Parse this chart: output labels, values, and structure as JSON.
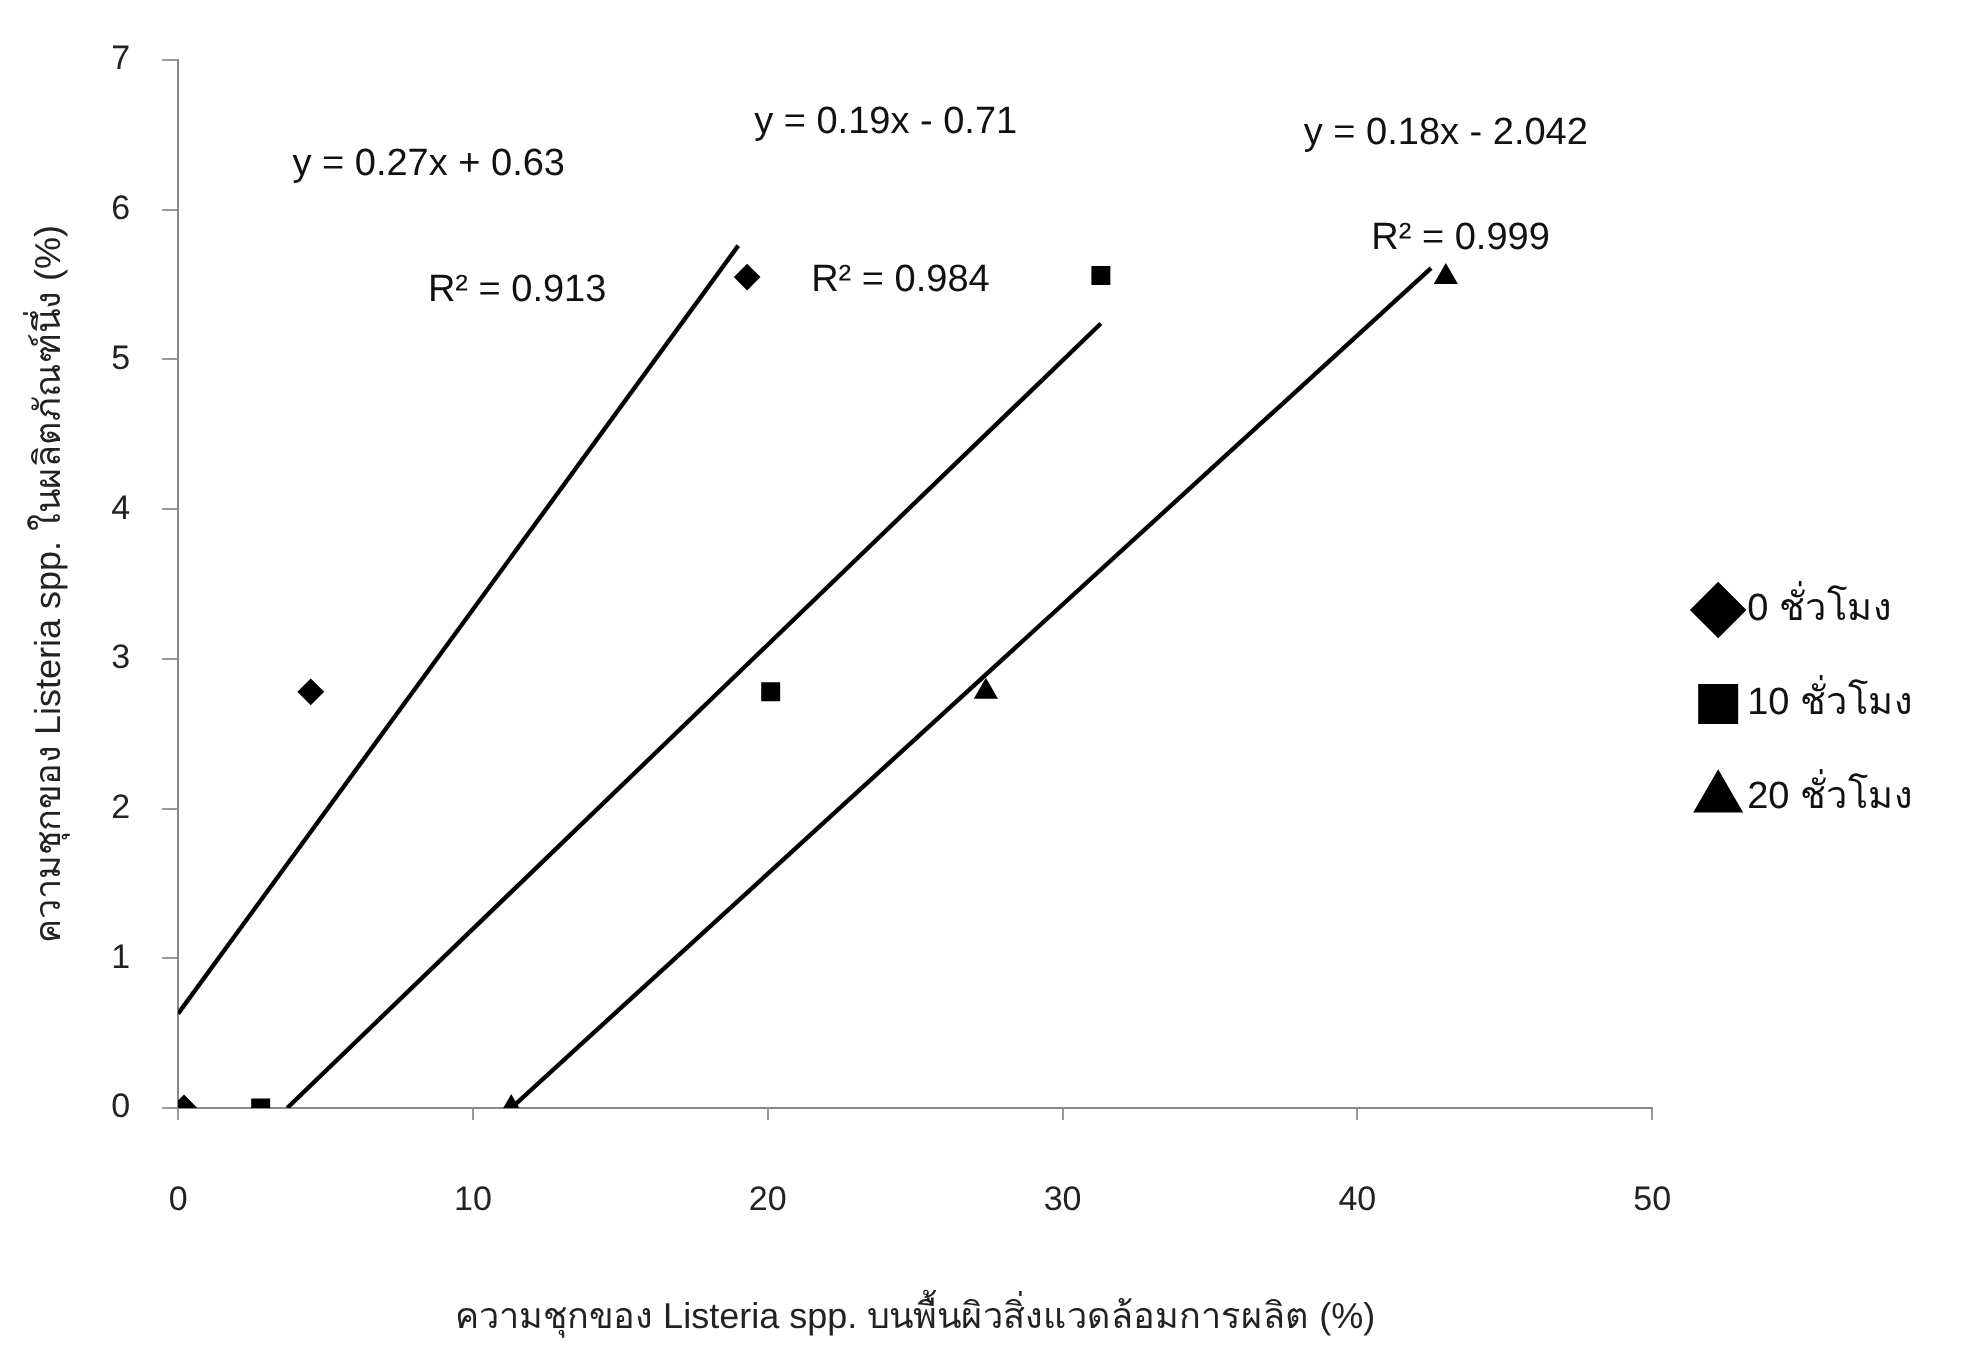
{
  "chart_data": {
    "type": "scatter",
    "xlabel": "ความชุกของ Listeria spp. บนพื้นผิวสิ่งแวดล้อมการผลิต (%)",
    "ylabel": "ความชุกของ Listeria spp. ในผลิตภัณฑ์นึ่ง (%)",
    "xlim": [
      0,
      50
    ],
    "xticks": [
      0,
      10,
      20,
      30,
      40,
      50
    ],
    "ylim": [
      0,
      7
    ],
    "yticks": [
      0,
      1,
      2,
      3,
      4,
      5,
      6,
      7
    ],
    "grid": false,
    "legend": "right",
    "series": [
      {
        "name": "0 ชั่วโมง",
        "marker": "diamond",
        "color": "#000000",
        "x": [
          0.2,
          4.5,
          19.3
        ],
        "values": [
          0,
          2.78,
          5.55
        ]
      },
      {
        "name": "10 ชั่วโมง",
        "marker": "square",
        "color": "#000000",
        "x": [
          2.8,
          20.1,
          31.3
        ],
        "values": [
          0,
          2.78,
          5.56
        ]
      },
      {
        "name": "20 ชั่วโมง",
        "marker": "triangle",
        "color": "#000000",
        "x": [
          11.3,
          27.4,
          43
        ],
        "values": [
          0,
          2.78,
          5.55
        ]
      },
      {
        "type": "line",
        "marker": "none",
        "color": "#000000",
        "x": [
          0,
          19
        ],
        "values": [
          0.63,
          5.76
        ]
      },
      {
        "type": "line",
        "marker": "none",
        "color": "#000000",
        "x": [
          3.7,
          31.3
        ],
        "values": [
          0,
          5.24
        ]
      },
      {
        "type": "line",
        "marker": "none",
        "color": "#000000",
        "x": [
          11.3,
          42.5
        ],
        "values": [
          0,
          5.61
        ]
      }
    ],
    "annotations": [
      "y = 0.27x + 0.63",
      "R² = 0.913",
      "y = 0.19x - 0.71",
      "R² = 0.984",
      "y = 0.18x - 2.042",
      "R² = 0.999"
    ]
  }
}
